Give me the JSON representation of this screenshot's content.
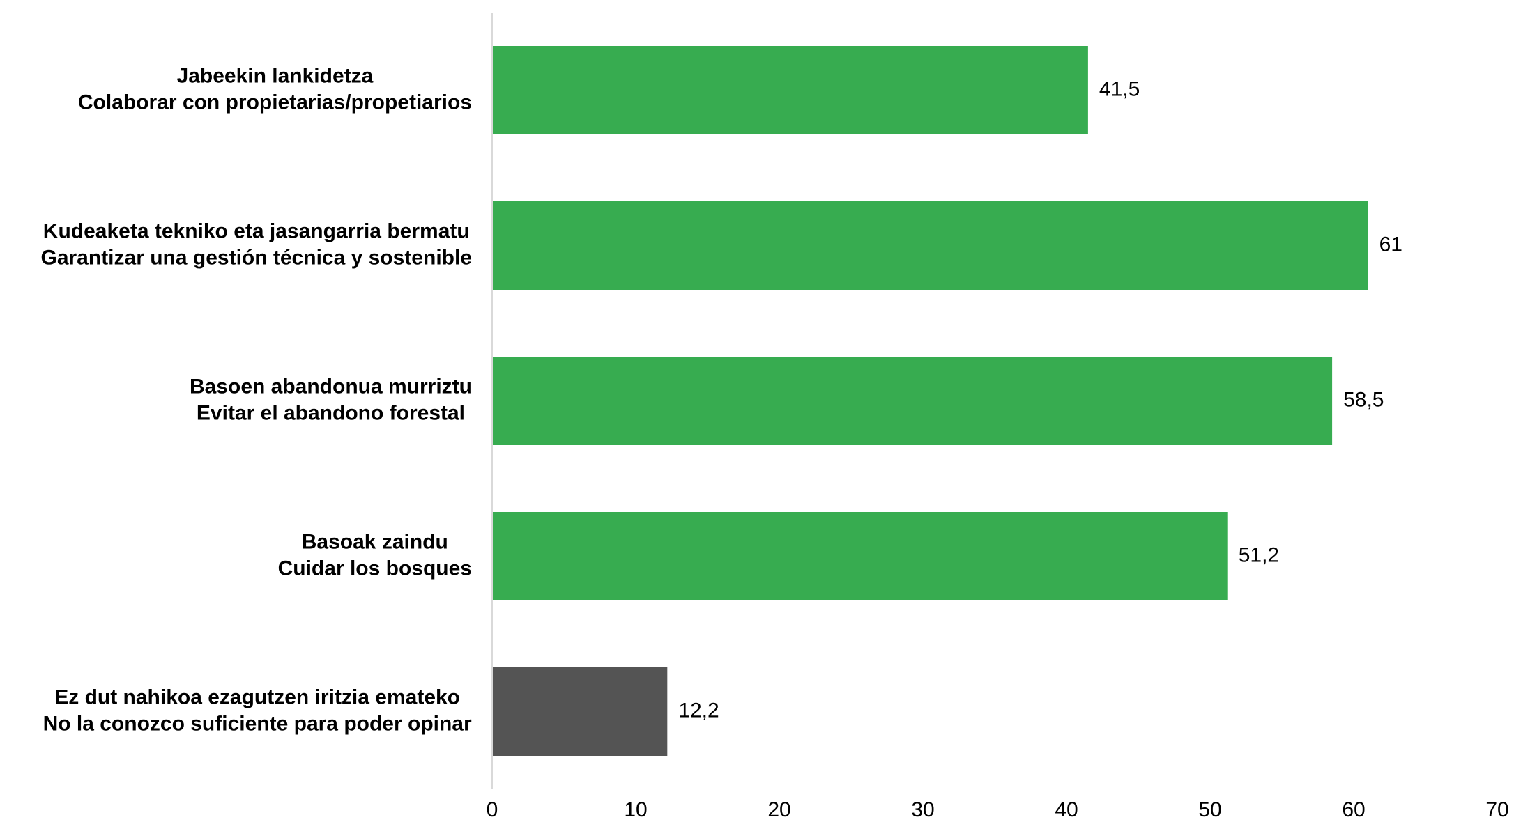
{
  "chart_data": {
    "type": "bar",
    "orientation": "horizontal",
    "title": "",
    "xlabel": "",
    "ylabel": "",
    "xlim": [
      0,
      70
    ],
    "xticks": [
      0,
      10,
      20,
      30,
      40,
      50,
      60,
      70
    ],
    "grid": false,
    "legend": "none",
    "categories": [
      {
        "line1": "Jabeekin lankidetza",
        "line2": "Colaborar con propietarias/propetiarios",
        "value": 41.5,
        "value_label": "41,5",
        "color": "#37ac50"
      },
      {
        "line1": "Kudeaketa tekniko eta jasangarria bermatu",
        "line2": "Garantizar una gestión técnica y sostenible",
        "value": 61,
        "value_label": "61",
        "color": "#37ac50"
      },
      {
        "line1": "Basoen abandonua murriztu",
        "line2": "Evitar el abandono forestal",
        "value": 58.5,
        "value_label": "58,5",
        "color": "#37ac50"
      },
      {
        "line1": "Basoak zaindu",
        "line2": "Cuidar los bosques",
        "value": 51.2,
        "value_label": "51,2",
        "color": "#37ac50"
      },
      {
        "line1": "Ez dut nahikoa ezagutzen iritzia emateko",
        "line2": "No la conozco suficiente para poder opinar",
        "value": 12.2,
        "value_label": "12,2",
        "color": "#545454"
      }
    ],
    "axis_color": "#d9d9d9"
  }
}
